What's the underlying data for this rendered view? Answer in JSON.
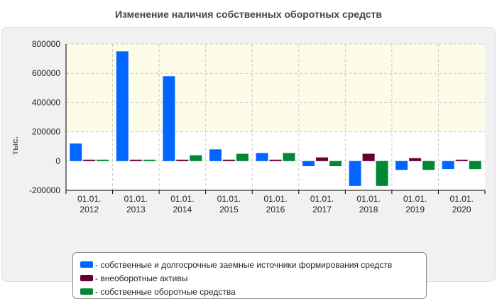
{
  "title": "Изменение наличия собственных оборотных средств",
  "chart_data": {
    "type": "bar",
    "ylabel": "тыс.",
    "ylim": [
      -200000,
      800000
    ],
    "yticks": [
      "800000",
      "600000",
      "400000",
      "200000",
      "0",
      "-200000"
    ],
    "ytick_values": [
      800000,
      600000,
      400000,
      200000,
      0,
      -200000
    ],
    "categories": [
      {
        "line1": "01.01.",
        "line2": "2012"
      },
      {
        "line1": "01.01.",
        "line2": "2013"
      },
      {
        "line1": "01.01.",
        "line2": "2014"
      },
      {
        "line1": "01.01.",
        "line2": "2015"
      },
      {
        "line1": "01.01.",
        "line2": "2016"
      },
      {
        "line1": "01.01.",
        "line2": "2017"
      },
      {
        "line1": "01.01.",
        "line2": "2018"
      },
      {
        "line1": "01.01.",
        "line2": "2019"
      },
      {
        "line1": "01.01.",
        "line2": "2020"
      }
    ],
    "series": [
      {
        "name": "- собственные и долгосрочные заемные источники формирования средств",
        "color": "#0066ff",
        "values": [
          120000,
          750000,
          580000,
          80000,
          55000,
          -35000,
          -170000,
          -60000,
          -55000
        ]
      },
      {
        "name": "- внеоборотные активы",
        "color": "#660033",
        "values": [
          5000,
          5000,
          5000,
          5000,
          5000,
          25000,
          50000,
          20000,
          5000
        ]
      },
      {
        "name": "- собственные оборотные средства",
        "color": "#008833",
        "values": [
          5000,
          5000,
          40000,
          50000,
          55000,
          -35000,
          -170000,
          -60000,
          -55000
        ]
      }
    ],
    "grid": true,
    "legend_position": "bottom"
  }
}
